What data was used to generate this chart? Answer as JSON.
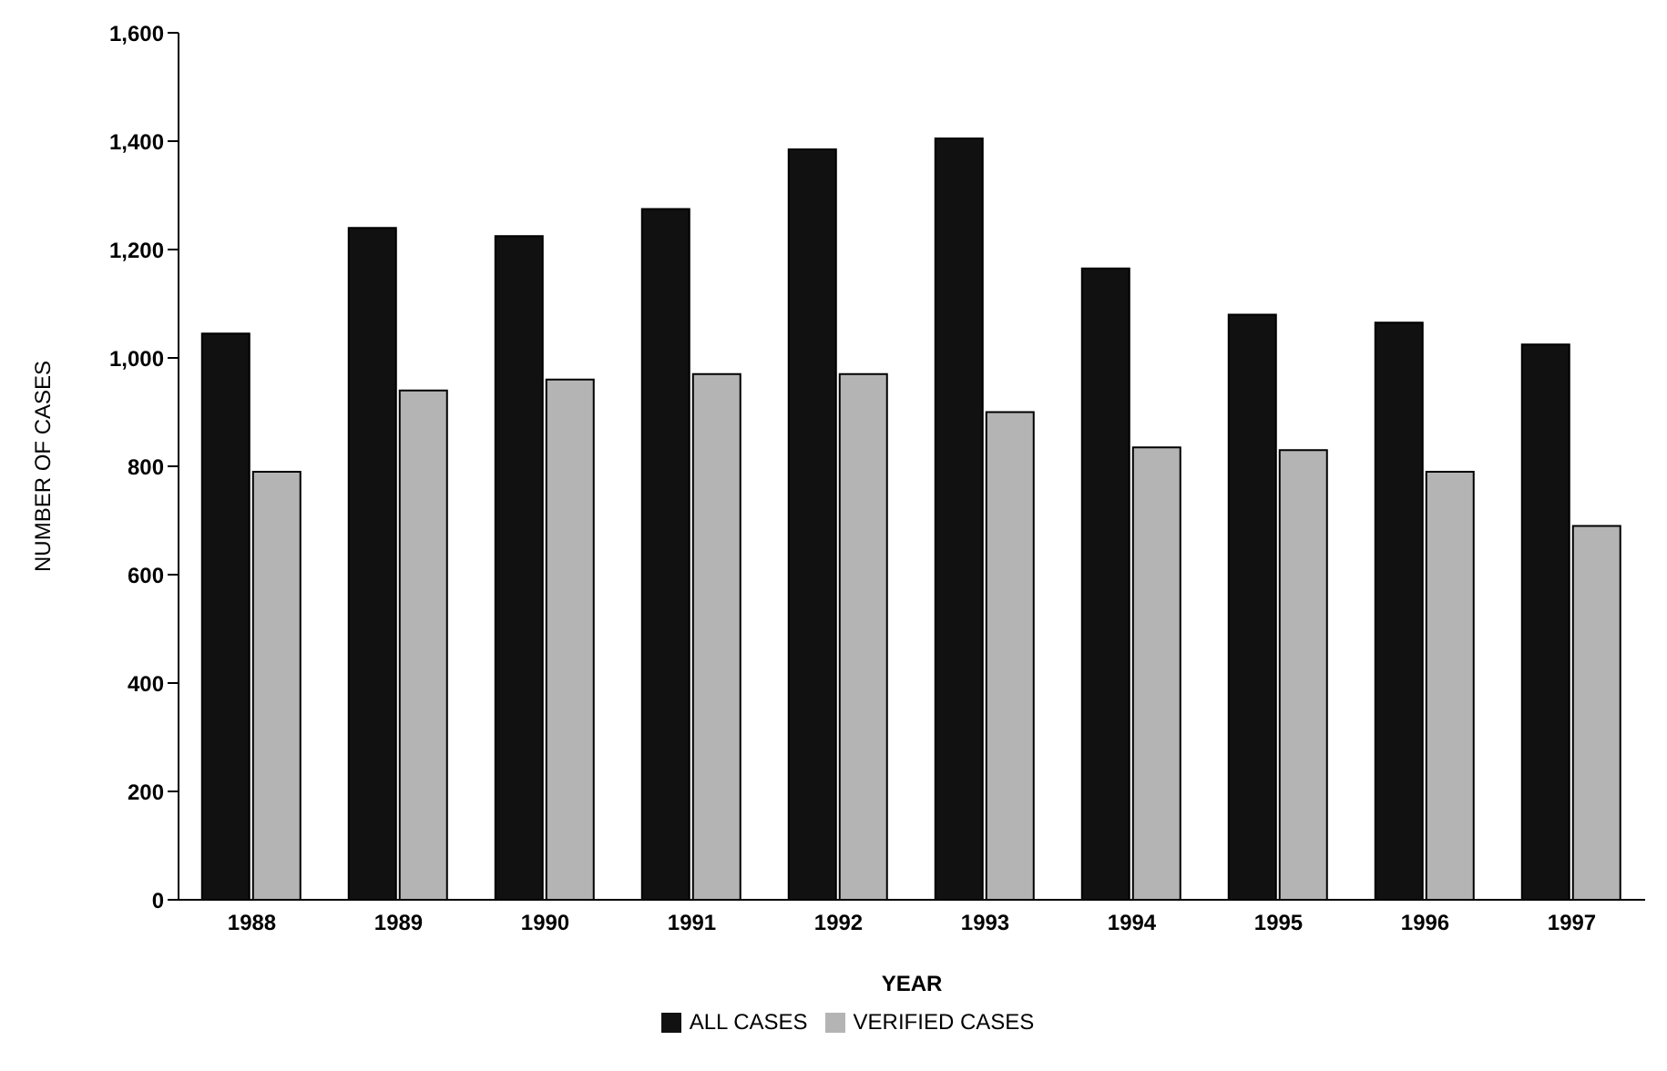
{
  "chart_data": {
    "type": "bar",
    "xlabel": "YEAR",
    "ylabel": "NUMBER OF CASES",
    "categories": [
      "1988",
      "1989",
      "1990",
      "1991",
      "1992",
      "1993",
      "1994",
      "1995",
      "1996",
      "1997"
    ],
    "series": [
      {
        "name": "ALL CASES",
        "color": "#111111",
        "values": [
          1045,
          1240,
          1225,
          1275,
          1385,
          1405,
          1165,
          1080,
          1065,
          1025
        ]
      },
      {
        "name": "VERIFIED CASES",
        "color": "#b4b4b4",
        "values": [
          790,
          940,
          960,
          970,
          970,
          900,
          835,
          830,
          790,
          690
        ]
      }
    ],
    "ylim": [
      0,
      1600
    ],
    "yticks": [
      0,
      200,
      400,
      600,
      800,
      {
        "value": 1000,
        "label": "1,000"
      },
      {
        "value": 1200,
        "label": "1,200"
      },
      {
        "value": 1400,
        "label": "1,400"
      },
      {
        "value": 1600,
        "label": "1,600"
      }
    ],
    "grid": false,
    "legend": "bottom"
  }
}
